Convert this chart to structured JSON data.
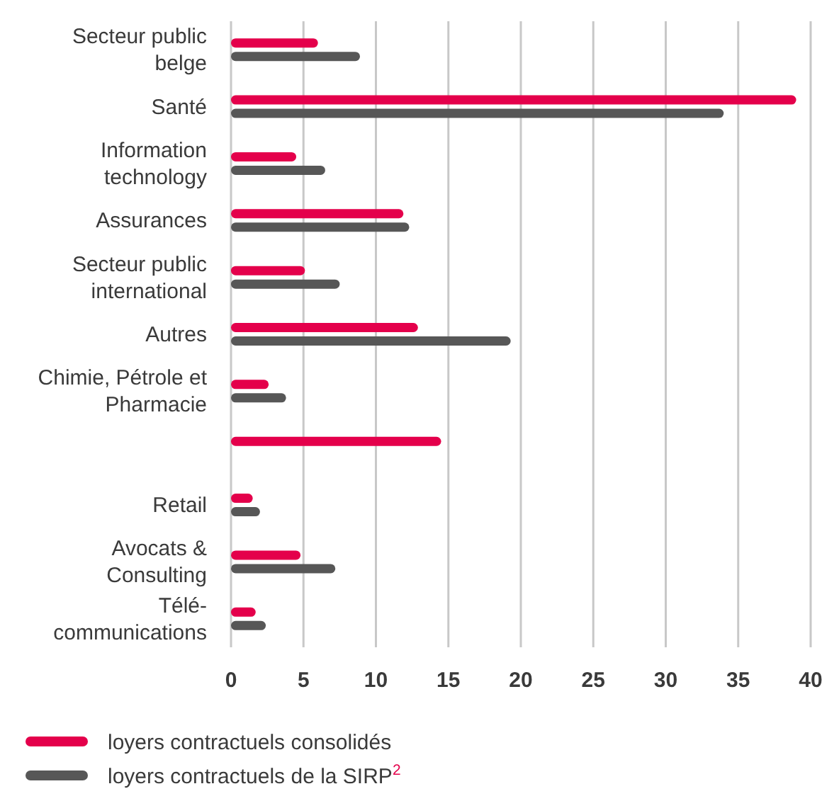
{
  "chart_data": {
    "type": "bar",
    "orientation": "horizontal",
    "categories": [
      "Secteur public\nbelge",
      "Santé",
      "Information\ntechnology",
      "Assurances",
      "Secteur public\ninternational",
      "Autres",
      "Chimie, Pétrole et\nPharmacie",
      null,
      "Retail",
      "Avocats &\nConsulting",
      "Télé-\ncommunications"
    ],
    "series": [
      {
        "name": "loyers contractuels consolidés",
        "color": "#e4004b",
        "values": [
          6.0,
          39.0,
          4.5,
          11.9,
          5.1,
          12.9,
          2.6,
          14.5,
          1.5,
          4.8,
          1.7
        ]
      },
      {
        "name": "loyers contractuels de la SIRP$^{2}$",
        "color": "#575757",
        "values": [
          8.9,
          34.0,
          6.5,
          12.3,
          7.5,
          19.3,
          3.8,
          null,
          2.0,
          7.2,
          2.4
        ]
      }
    ],
    "xlim": [
      0,
      40
    ],
    "xticks": [
      0,
      5,
      10,
      15,
      20,
      25,
      30,
      35,
      40
    ],
    "grid": "x",
    "legend": "bottom left"
  }
}
